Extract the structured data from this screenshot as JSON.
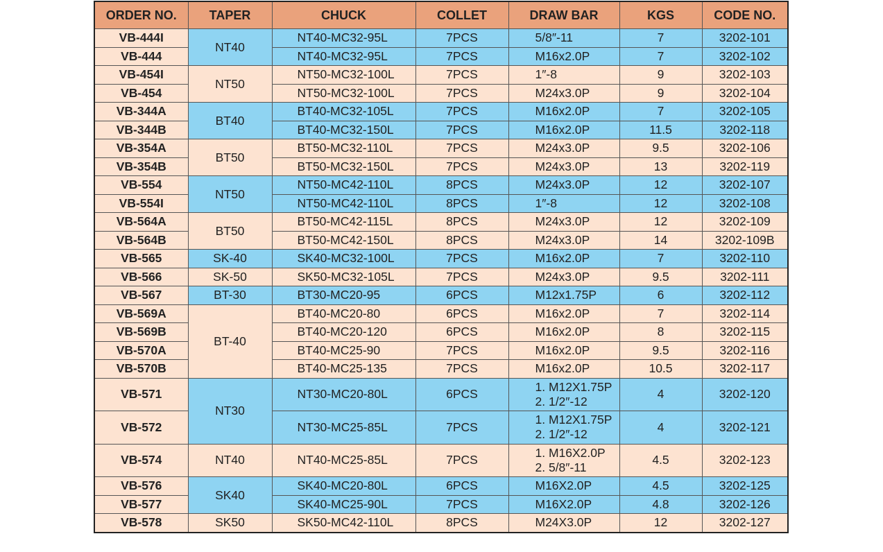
{
  "table": {
    "headers": [
      "ORDER NO.",
      "TAPER",
      "CHUCK",
      "COLLET",
      "DRAW BAR",
      "KGS",
      "CODE NO."
    ],
    "groups": [
      {
        "taper": "NT40",
        "color": "#8fd4f2",
        "rows": [
          [
            "VB-444I",
            "NT40-MC32-95L",
            "7PCS",
            "5/8″-11",
            7,
            "3202-101"
          ],
          [
            "VB-444",
            "NT40-MC32-95L",
            "7PCS",
            "M16x2.0P",
            7,
            "3202-102"
          ]
        ]
      },
      {
        "taper": "NT50",
        "color": "#fde3d1",
        "rows": [
          [
            "VB-454I",
            "NT50-MC32-100L",
            "7PCS",
            "1″-8",
            9,
            "3202-103"
          ],
          [
            "VB-454",
            "NT50-MC32-100L",
            "7PCS",
            "M24x3.0P",
            9,
            "3202-104"
          ]
        ]
      },
      {
        "taper": "BT40",
        "color": "#8fd4f2",
        "rows": [
          [
            "VB-344A",
            "BT40-MC32-105L",
            "7PCS",
            "M16x2.0P",
            7,
            "3202-105"
          ],
          [
            "VB-344B",
            "BT40-MC32-150L",
            "7PCS",
            "M16x2.0P",
            11.5,
            "3202-118"
          ]
        ]
      },
      {
        "taper": "BT50",
        "color": "#fde3d1",
        "rows": [
          [
            "VB-354A",
            "BT50-MC32-110L",
            "7PCS",
            "M24x3.0P",
            9.5,
            "3202-106"
          ],
          [
            "VB-354B",
            "BT50-MC32-150L",
            "7PCS",
            "M24x3.0P",
            13,
            "3202-119"
          ]
        ]
      },
      {
        "taper": "NT50",
        "color": "#8fd4f2",
        "rows": [
          [
            "VB-554",
            "NT50-MC42-110L",
            "8PCS",
            "M24x3.0P",
            12,
            "3202-107"
          ],
          [
            "VB-554I",
            "NT50-MC42-110L",
            "8PCS",
            "1″-8",
            12,
            "3202-108"
          ]
        ]
      },
      {
        "taper": "BT50",
        "color": "#fde3d1",
        "rows": [
          [
            "VB-564A",
            "BT50-MC42-115L",
            "8PCS",
            "M24x3.0P",
            12,
            "3202-109"
          ],
          [
            "VB-564B",
            "BT50-MC42-150L",
            "8PCS",
            "M24x3.0P",
            14,
            "3202-109B"
          ]
        ]
      },
      {
        "taper": "SK-40",
        "color": "#8fd4f2",
        "rows": [
          [
            "VB-565",
            "SK40-MC32-100L",
            "7PCS",
            "M16x2.0P",
            7,
            "3202-110"
          ]
        ]
      },
      {
        "taper": "SK-50",
        "color": "#fde3d1",
        "rows": [
          [
            "VB-566",
            "SK50-MC32-105L",
            "7PCS",
            "M24x3.0P",
            9.5,
            "3202-111"
          ]
        ]
      },
      {
        "taper": "BT-30",
        "color": "#8fd4f2",
        "rows": [
          [
            "VB-567",
            "BT30-MC20-95",
            "6PCS",
            "M12x1.75P",
            6,
            "3202-112"
          ]
        ]
      },
      {
        "taper": "BT-40",
        "color": "#fde3d1",
        "rows": [
          [
            "VB-569A",
            "BT40-MC20-80",
            "6PCS",
            "M16x2.0P",
            7,
            "3202-114"
          ],
          [
            "VB-569B",
            "BT40-MC20-120",
            "6PCS",
            "M16x2.0P",
            8,
            "3202-115"
          ],
          [
            "VB-570A",
            "BT40-MC25-90",
            "7PCS",
            "M16x2.0P",
            9.5,
            "3202-116"
          ],
          [
            "VB-570B",
            "BT40-MC25-135",
            "7PCS",
            "M16x2.0P",
            10.5,
            "3202-117"
          ]
        ]
      },
      {
        "taper": "NT30",
        "color": "#8fd4f2",
        "rows": [
          [
            "VB-571",
            "NT30-MC20-80L",
            "6PCS",
            [
              "1. M12X1.75P",
              "2. 1/2″-12"
            ],
            4,
            "3202-120"
          ],
          [
            "VB-572",
            "NT30-MC25-85L",
            "7PCS",
            [
              "1. M12X1.75P",
              "2. 1/2″-12"
            ],
            4,
            "3202-121"
          ]
        ]
      },
      {
        "taper": "NT40",
        "color": "#fde3d1",
        "rows": [
          [
            "VB-574",
            "NT40-MC25-85L",
            "7PCS",
            [
              "1. M16X2.0P",
              "2. 5/8″-11"
            ],
            4.5,
            "3202-123"
          ]
        ]
      },
      {
        "taper": "SK40",
        "color": "#8fd4f2",
        "rows": [
          [
            "VB-576",
            "SK40-MC20-80L",
            "6PCS",
            "M16X2.0P",
            4.5,
            "3202-125"
          ],
          [
            "VB-577",
            "SK40-MC25-90L",
            "7PCS",
            "M16X2.0P",
            4.8,
            "3202-126"
          ]
        ]
      },
      {
        "taper": "SK50",
        "color": "#fde3d1",
        "rows": [
          [
            "VB-578",
            "SK50-MC42-110L",
            "8PCS",
            "M24X3.0P",
            12,
            "3202-127"
          ]
        ]
      }
    ],
    "order_color": "#fde3d1",
    "header_color": "#eaa27c"
  }
}
